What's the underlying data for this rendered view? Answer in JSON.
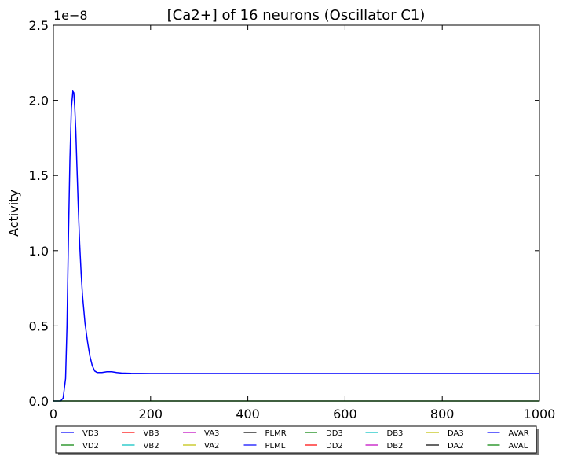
{
  "chart_data": {
    "type": "line",
    "title": "[Ca2+] of 16 neurons (Oscillator C1)",
    "xlabel": "",
    "ylabel": "Activity",
    "y_offset_label": "1e−8",
    "xlim": [
      0,
      1000
    ],
    "ylim": [
      0,
      2.5
    ],
    "x_ticks": [
      "0",
      "200",
      "400",
      "600",
      "800",
      "1000"
    ],
    "y_ticks": [
      "0.0",
      "0.5",
      "1.0",
      "1.5",
      "2.0",
      "2.5"
    ],
    "x_tick_values": [
      0,
      200,
      400,
      600,
      800,
      1000
    ],
    "y_tick_values": [
      0,
      0.5,
      1.0,
      1.5,
      2.0,
      2.5
    ],
    "grid": false,
    "legend_placement": "below plot, 8 columns",
    "legend": [
      {
        "name": "VD3",
        "color": "#0000ff"
      },
      {
        "name": "VD2",
        "color": "#008000"
      },
      {
        "name": "VB3",
        "color": "#ff0000"
      },
      {
        "name": "VB2",
        "color": "#00bfbf"
      },
      {
        "name": "VA3",
        "color": "#bf00bf"
      },
      {
        "name": "VA2",
        "color": "#bfbf00"
      },
      {
        "name": "PLMR",
        "color": "#000000"
      },
      {
        "name": "PLML",
        "color": "#0000ff"
      },
      {
        "name": "DD3",
        "color": "#008000"
      },
      {
        "name": "DD2",
        "color": "#ff0000"
      },
      {
        "name": "DB3",
        "color": "#00bfbf"
      },
      {
        "name": "DB2",
        "color": "#bf00bf"
      },
      {
        "name": "DA3",
        "color": "#bfbf00"
      },
      {
        "name": "DA2",
        "color": "#000000"
      },
      {
        "name": "AVAR",
        "color": "#0000ff"
      },
      {
        "name": "AVAL",
        "color": "#008000"
      }
    ],
    "series": [
      {
        "name": "PLML",
        "color": "#0000ff",
        "x": [
          0,
          15,
          20,
          25,
          28,
          31,
          34,
          37,
          40,
          42,
          44,
          46,
          48,
          51,
          54,
          57,
          60,
          65,
          70,
          75,
          80,
          85,
          90,
          95,
          100,
          110,
          120,
          130,
          140,
          160,
          200,
          300,
          500,
          1000
        ],
        "y": [
          0,
          0,
          0.02,
          0.15,
          0.5,
          1.1,
          1.6,
          1.95,
          2.06,
          2.05,
          1.95,
          1.8,
          1.6,
          1.3,
          1.05,
          0.85,
          0.7,
          0.52,
          0.4,
          0.3,
          0.235,
          0.2,
          0.19,
          0.19,
          0.19,
          0.195,
          0.195,
          0.19,
          0.186,
          0.184,
          0.183,
          0.183,
          0.183,
          0.183
        ]
      },
      {
        "name": "AVAL",
        "color": "#008000",
        "x": [
          0,
          1000
        ],
        "y": [
          0,
          0
        ]
      }
    ]
  }
}
